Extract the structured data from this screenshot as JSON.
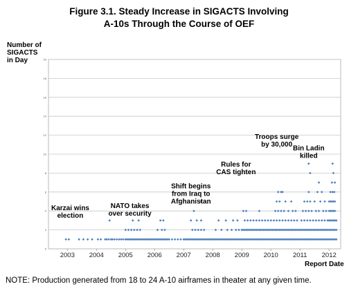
{
  "chart_data": {
    "type": "scatter",
    "title_line1": "Figure 3.1. Steady Increase in SIGACTS Involving",
    "title_line2": "A-10s Through the Course of OEF",
    "ylabel_lines": [
      "Number of",
      "SIGACTS",
      "in Day"
    ],
    "xlabel": "Report Date",
    "note": "NOTE: Production generated from 18 to 24 A-10 airframes in theater at any given time.",
    "xlim": [
      2002.35,
      2012.4
    ],
    "ylim": [
      0,
      20
    ],
    "x_ticks": [
      "2003",
      "2004",
      "2005",
      "2006",
      "2007",
      "2008",
      "2009",
      "2010",
      "2011",
      "2012"
    ],
    "y_ticks": [
      "0",
      "2",
      "4",
      "6",
      "8",
      "10",
      "12",
      "14",
      "16",
      "18",
      "20"
    ],
    "grid": true,
    "color": "#4f81bd",
    "annotations": [
      {
        "lines": [
          "Karzai wins",
          "election"
        ],
        "x": 2003.1,
        "y": 4.1
      },
      {
        "lines": [
          "NATO takes",
          "over security"
        ],
        "x": 2005.15,
        "y": 4.3
      },
      {
        "lines": [
          "Shift begins",
          "from Iraq to",
          "Afghanistan"
        ],
        "x": 2007.25,
        "y": 6.4
      },
      {
        "lines": [
          "Rules for",
          "CAS tighten"
        ],
        "x": 2008.8,
        "y": 8.7
      },
      {
        "lines": [
          "Troops surge",
          "by 30,000"
        ],
        "x": 2010.2,
        "y": 11.6
      },
      {
        "lines": [
          "Bin Ladin",
          "killed"
        ],
        "x": 2011.3,
        "y": 10.4
      }
    ],
    "points": [
      [
        2002.95,
        1
      ],
      [
        2003.05,
        1
      ],
      [
        2003.4,
        1
      ],
      [
        2003.55,
        1
      ],
      [
        2003.7,
        1
      ],
      [
        2003.85,
        1
      ],
      [
        2004.05,
        1
      ],
      [
        2004.15,
        1
      ],
      [
        2004.3,
        1
      ],
      [
        2004.35,
        1
      ],
      [
        2004.42,
        1
      ],
      [
        2004.5,
        1
      ],
      [
        2004.55,
        1
      ],
      [
        2004.62,
        1
      ],
      [
        2004.7,
        1
      ],
      [
        2004.78,
        1
      ],
      [
        2004.85,
        1
      ],
      [
        2004.92,
        1
      ],
      [
        2004.45,
        3
      ],
      [
        2005.0,
        1
      ],
      [
        2005.05,
        1
      ],
      [
        2005.1,
        1
      ],
      [
        2005.15,
        1
      ],
      [
        2005.2,
        1
      ],
      [
        2005.25,
        1
      ],
      [
        2005.3,
        1
      ],
      [
        2005.35,
        1
      ],
      [
        2005.4,
        1
      ],
      [
        2005.45,
        1
      ],
      [
        2005.5,
        1
      ],
      [
        2005.55,
        1
      ],
      [
        2005.6,
        1
      ],
      [
        2005.65,
        1
      ],
      [
        2005.7,
        1
      ],
      [
        2005.75,
        1
      ],
      [
        2005.8,
        1
      ],
      [
        2005.85,
        1
      ],
      [
        2005.9,
        1
      ],
      [
        2005.95,
        1
      ],
      [
        2005.0,
        2
      ],
      [
        2005.1,
        2
      ],
      [
        2005.2,
        2
      ],
      [
        2005.3,
        2
      ],
      [
        2005.4,
        2
      ],
      [
        2005.5,
        2
      ],
      [
        2005.25,
        3
      ],
      [
        2005.45,
        3
      ],
      [
        2006.0,
        1
      ],
      [
        2006.05,
        1
      ],
      [
        2006.1,
        1
      ],
      [
        2006.15,
        1
      ],
      [
        2006.2,
        1
      ],
      [
        2006.25,
        1
      ],
      [
        2006.3,
        1
      ],
      [
        2006.35,
        1
      ],
      [
        2006.4,
        1
      ],
      [
        2006.45,
        1
      ],
      [
        2006.5,
        1
      ],
      [
        2006.6,
        1
      ],
      [
        2006.7,
        1
      ],
      [
        2006.8,
        1
      ],
      [
        2006.9,
        1
      ],
      [
        2006.1,
        2
      ],
      [
        2006.25,
        2
      ],
      [
        2006.35,
        2
      ],
      [
        2006.2,
        3
      ],
      [
        2006.3,
        3
      ],
      [
        2007.0,
        1
      ],
      [
        2007.05,
        1
      ],
      [
        2007.1,
        1
      ],
      [
        2007.15,
        1
      ],
      [
        2007.2,
        1
      ],
      [
        2007.25,
        1
      ],
      [
        2007.3,
        1
      ],
      [
        2007.35,
        1
      ],
      [
        2007.4,
        1
      ],
      [
        2007.45,
        1
      ],
      [
        2007.5,
        1
      ],
      [
        2007.55,
        1
      ],
      [
        2007.6,
        1
      ],
      [
        2007.65,
        1
      ],
      [
        2007.7,
        1
      ],
      [
        2007.75,
        1
      ],
      [
        2007.8,
        1
      ],
      [
        2007.85,
        1
      ],
      [
        2007.9,
        1
      ],
      [
        2007.95,
        1
      ],
      [
        2007.3,
        2
      ],
      [
        2007.4,
        2
      ],
      [
        2007.5,
        2
      ],
      [
        2007.6,
        2
      ],
      [
        2007.7,
        2
      ],
      [
        2007.25,
        3
      ],
      [
        2007.45,
        3
      ],
      [
        2007.6,
        3
      ],
      [
        2007.35,
        4
      ],
      [
        2007.6,
        5
      ],
      [
        2008.0,
        1
      ],
      [
        2008.05,
        1
      ],
      [
        2008.1,
        1
      ],
      [
        2008.15,
        1
      ],
      [
        2008.2,
        1
      ],
      [
        2008.25,
        1
      ],
      [
        2008.3,
        1
      ],
      [
        2008.35,
        1
      ],
      [
        2008.4,
        1
      ],
      [
        2008.45,
        1
      ],
      [
        2008.5,
        1
      ],
      [
        2008.55,
        1
      ],
      [
        2008.6,
        1
      ],
      [
        2008.65,
        1
      ],
      [
        2008.7,
        1
      ],
      [
        2008.75,
        1
      ],
      [
        2008.8,
        1
      ],
      [
        2008.85,
        1
      ],
      [
        2008.9,
        1
      ],
      [
        2008.95,
        1
      ],
      [
        2008.1,
        2
      ],
      [
        2008.3,
        2
      ],
      [
        2008.5,
        2
      ],
      [
        2008.65,
        2
      ],
      [
        2008.8,
        2
      ],
      [
        2008.9,
        2
      ],
      [
        2008.2,
        3
      ],
      [
        2008.45,
        3
      ],
      [
        2008.7,
        3
      ],
      [
        2008.85,
        3
      ],
      [
        2009.0,
        1
      ],
      [
        2009.05,
        1
      ],
      [
        2009.1,
        1
      ],
      [
        2009.15,
        1
      ],
      [
        2009.2,
        1
      ],
      [
        2009.25,
        1
      ],
      [
        2009.3,
        1
      ],
      [
        2009.35,
        1
      ],
      [
        2009.4,
        1
      ],
      [
        2009.45,
        1
      ],
      [
        2009.5,
        1
      ],
      [
        2009.55,
        1
      ],
      [
        2009.6,
        1
      ],
      [
        2009.65,
        1
      ],
      [
        2009.7,
        1
      ],
      [
        2009.75,
        1
      ],
      [
        2009.8,
        1
      ],
      [
        2009.85,
        1
      ],
      [
        2009.9,
        1
      ],
      [
        2009.95,
        1
      ],
      [
        2009.0,
        2
      ],
      [
        2009.05,
        2
      ],
      [
        2009.1,
        2
      ],
      [
        2009.15,
        2
      ],
      [
        2009.2,
        2
      ],
      [
        2009.25,
        2
      ],
      [
        2009.3,
        2
      ],
      [
        2009.35,
        2
      ],
      [
        2009.4,
        2
      ],
      [
        2009.45,
        2
      ],
      [
        2009.5,
        2
      ],
      [
        2009.55,
        2
      ],
      [
        2009.6,
        2
      ],
      [
        2009.65,
        2
      ],
      [
        2009.7,
        2
      ],
      [
        2009.75,
        2
      ],
      [
        2009.8,
        2
      ],
      [
        2009.85,
        2
      ],
      [
        2009.9,
        2
      ],
      [
        2009.95,
        2
      ],
      [
        2009.1,
        3
      ],
      [
        2009.2,
        3
      ],
      [
        2009.3,
        3
      ],
      [
        2009.4,
        3
      ],
      [
        2009.5,
        3
      ],
      [
        2009.6,
        3
      ],
      [
        2009.7,
        3
      ],
      [
        2009.8,
        3
      ],
      [
        2009.9,
        3
      ],
      [
        2009.05,
        4
      ],
      [
        2009.15,
        4
      ],
      [
        2009.6,
        4
      ],
      [
        2010.0,
        1
      ],
      [
        2010.05,
        1
      ],
      [
        2010.1,
        1
      ],
      [
        2010.15,
        1
      ],
      [
        2010.2,
        1
      ],
      [
        2010.25,
        1
      ],
      [
        2010.3,
        1
      ],
      [
        2010.35,
        1
      ],
      [
        2010.4,
        1
      ],
      [
        2010.45,
        1
      ],
      [
        2010.5,
        1
      ],
      [
        2010.55,
        1
      ],
      [
        2010.6,
        1
      ],
      [
        2010.65,
        1
      ],
      [
        2010.7,
        1
      ],
      [
        2010.75,
        1
      ],
      [
        2010.8,
        1
      ],
      [
        2010.85,
        1
      ],
      [
        2010.9,
        1
      ],
      [
        2010.95,
        1
      ],
      [
        2010.0,
        2
      ],
      [
        2010.05,
        2
      ],
      [
        2010.1,
        2
      ],
      [
        2010.15,
        2
      ],
      [
        2010.2,
        2
      ],
      [
        2010.25,
        2
      ],
      [
        2010.3,
        2
      ],
      [
        2010.35,
        2
      ],
      [
        2010.4,
        2
      ],
      [
        2010.45,
        2
      ],
      [
        2010.5,
        2
      ],
      [
        2010.55,
        2
      ],
      [
        2010.6,
        2
      ],
      [
        2010.65,
        2
      ],
      [
        2010.7,
        2
      ],
      [
        2010.75,
        2
      ],
      [
        2010.8,
        2
      ],
      [
        2010.85,
        2
      ],
      [
        2010.9,
        2
      ],
      [
        2010.95,
        2
      ],
      [
        2010.0,
        3
      ],
      [
        2010.1,
        3
      ],
      [
        2010.2,
        3
      ],
      [
        2010.3,
        3
      ],
      [
        2010.4,
        3
      ],
      [
        2010.5,
        3
      ],
      [
        2010.6,
        3
      ],
      [
        2010.7,
        3
      ],
      [
        2010.8,
        3
      ],
      [
        2010.9,
        3
      ],
      [
        2010.15,
        4
      ],
      [
        2010.25,
        4
      ],
      [
        2010.35,
        4
      ],
      [
        2010.45,
        4
      ],
      [
        2010.6,
        4
      ],
      [
        2010.75,
        4
      ],
      [
        2010.85,
        4
      ],
      [
        2010.2,
        5
      ],
      [
        2010.3,
        5
      ],
      [
        2010.5,
        5
      ],
      [
        2010.7,
        5
      ],
      [
        2010.25,
        6
      ],
      [
        2010.35,
        6
      ],
      [
        2010.4,
        6
      ],
      [
        2011.0,
        1
      ],
      [
        2011.05,
        1
      ],
      [
        2011.1,
        1
      ],
      [
        2011.15,
        1
      ],
      [
        2011.2,
        1
      ],
      [
        2011.25,
        1
      ],
      [
        2011.3,
        1
      ],
      [
        2011.35,
        1
      ],
      [
        2011.4,
        1
      ],
      [
        2011.45,
        1
      ],
      [
        2011.5,
        1
      ],
      [
        2011.55,
        1
      ],
      [
        2011.6,
        1
      ],
      [
        2011.65,
        1
      ],
      [
        2011.7,
        1
      ],
      [
        2011.75,
        1
      ],
      [
        2011.8,
        1
      ],
      [
        2011.85,
        1
      ],
      [
        2011.9,
        1
      ],
      [
        2011.95,
        1
      ],
      [
        2011.0,
        2
      ],
      [
        2011.05,
        2
      ],
      [
        2011.1,
        2
      ],
      [
        2011.15,
        2
      ],
      [
        2011.2,
        2
      ],
      [
        2011.25,
        2
      ],
      [
        2011.3,
        2
      ],
      [
        2011.35,
        2
      ],
      [
        2011.4,
        2
      ],
      [
        2011.45,
        2
      ],
      [
        2011.5,
        2
      ],
      [
        2011.55,
        2
      ],
      [
        2011.6,
        2
      ],
      [
        2011.65,
        2
      ],
      [
        2011.7,
        2
      ],
      [
        2011.75,
        2
      ],
      [
        2011.8,
        2
      ],
      [
        2011.85,
        2
      ],
      [
        2011.9,
        2
      ],
      [
        2011.95,
        2
      ],
      [
        2011.05,
        3
      ],
      [
        2011.15,
        3
      ],
      [
        2011.25,
        3
      ],
      [
        2011.35,
        3
      ],
      [
        2011.45,
        3
      ],
      [
        2011.55,
        3
      ],
      [
        2011.65,
        3
      ],
      [
        2011.75,
        3
      ],
      [
        2011.85,
        3
      ],
      [
        2011.95,
        3
      ],
      [
        2011.1,
        4
      ],
      [
        2011.2,
        4
      ],
      [
        2011.3,
        4
      ],
      [
        2011.4,
        4
      ],
      [
        2011.55,
        4
      ],
      [
        2011.65,
        4
      ],
      [
        2011.8,
        4
      ],
      [
        2011.9,
        4
      ],
      [
        2011.15,
        5
      ],
      [
        2011.25,
        5
      ],
      [
        2011.35,
        5
      ],
      [
        2011.5,
        5
      ],
      [
        2011.7,
        5
      ],
      [
        2011.85,
        5
      ],
      [
        2011.3,
        6
      ],
      [
        2011.6,
        6
      ],
      [
        2011.75,
        6
      ],
      [
        2011.65,
        7
      ],
      [
        2011.35,
        8
      ],
      [
        2011.3,
        9
      ],
      [
        2012.0,
        1
      ],
      [
        2012.05,
        1
      ],
      [
        2012.1,
        1
      ],
      [
        2012.15,
        1
      ],
      [
        2012.2,
        1
      ],
      [
        2012.25,
        1
      ],
      [
        2012.0,
        2
      ],
      [
        2012.05,
        2
      ],
      [
        2012.1,
        2
      ],
      [
        2012.15,
        2
      ],
      [
        2012.2,
        2
      ],
      [
        2012.25,
        2
      ],
      [
        2012.0,
        3
      ],
      [
        2012.05,
        3
      ],
      [
        2012.1,
        3
      ],
      [
        2012.15,
        3
      ],
      [
        2012.2,
        3
      ],
      [
        2012.25,
        3
      ],
      [
        2012.0,
        4
      ],
      [
        2012.05,
        4
      ],
      [
        2012.1,
        4
      ],
      [
        2012.15,
        4
      ],
      [
        2012.2,
        4
      ],
      [
        2012.0,
        5
      ],
      [
        2012.05,
        5
      ],
      [
        2012.1,
        5
      ],
      [
        2012.15,
        5
      ],
      [
        2012.2,
        5
      ],
      [
        2012.05,
        6
      ],
      [
        2012.12,
        6
      ],
      [
        2012.18,
        6
      ],
      [
        2012.1,
        7
      ],
      [
        2012.2,
        7
      ],
      [
        2012.15,
        8
      ],
      [
        2012.12,
        9
      ]
    ]
  }
}
